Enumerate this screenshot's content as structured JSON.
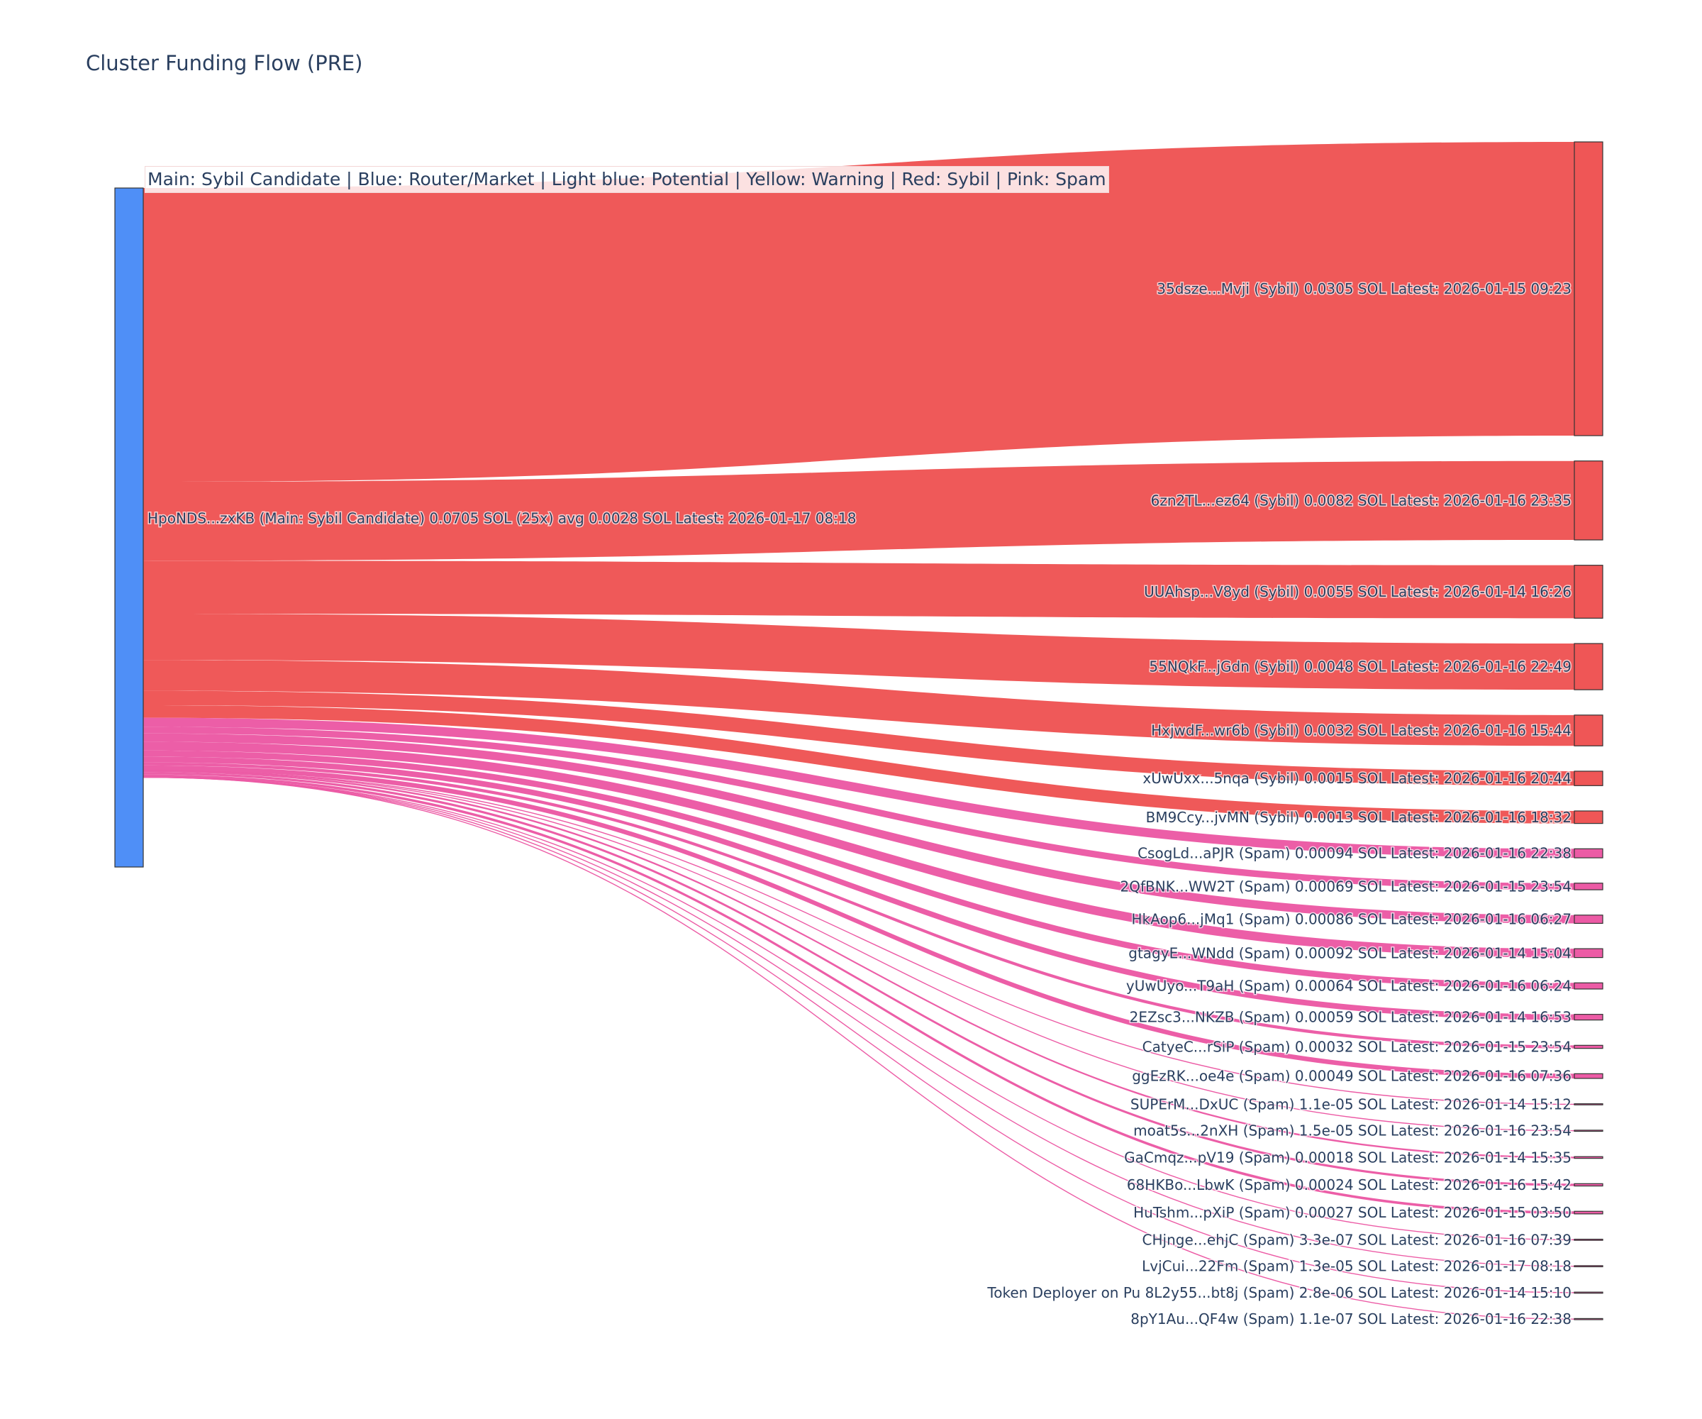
{
  "chart_data": {
    "type": "sankey",
    "title": "Cluster Funding Flow (PRE)",
    "legend_note": "Main: Sybil Candidate  |  Blue: Router/Market | Light blue: Potential | Yellow: Warning | Red: Sybil | Pink: Spam",
    "colors": {
      "main": "#4f8ff7",
      "sybil": "#ef5656",
      "spam": "#ec5ba5",
      "node_border": "#333333",
      "label": "#2a3f5f"
    },
    "source": {
      "label": "HpoNDS...zxKB (Main: Sybil Candidate) 0.0705 SOL (25x) avg 0.0028 SOL Latest: 2026-01-17 08:18",
      "total_sol": 0.0705,
      "category": "main"
    },
    "targets": [
      {
        "label": "35dsze...Mvji (Sybil) 0.0305 SOL Latest: 2026-01-15 09:23",
        "value": 0.0305,
        "category": "sybil"
      },
      {
        "label": "6zn2TL...ez64 (Sybil) 0.0082 SOL Latest: 2026-01-16 23:35",
        "value": 0.0082,
        "category": "sybil"
      },
      {
        "label": "UUAhsp...V8yd (Sybil) 0.0055 SOL Latest: 2026-01-14 16:26",
        "value": 0.0055,
        "category": "sybil"
      },
      {
        "label": "55NQkF...jGdn (Sybil) 0.0048 SOL Latest: 2026-01-16 22:49",
        "value": 0.0048,
        "category": "sybil"
      },
      {
        "label": "HxjwdF...wr6b (Sybil) 0.0032 SOL Latest: 2026-01-16 15:44",
        "value": 0.0032,
        "category": "sybil"
      },
      {
        "label": "xUwUxx...5nqa (Sybil) 0.0015 SOL Latest: 2026-01-16 20:44",
        "value": 0.0015,
        "category": "sybil"
      },
      {
        "label": "BM9Ccy...jvMN (Sybil) 0.0013 SOL Latest: 2026-01-16 18:32",
        "value": 0.0013,
        "category": "sybil"
      },
      {
        "label": "CsogLd...aPJR (Spam) 0.00094 SOL Latest: 2026-01-16 22:38",
        "value": 0.00094,
        "category": "spam"
      },
      {
        "label": "2QfBNK...WW2T (Spam) 0.00069 SOL Latest: 2026-01-15 23:54",
        "value": 0.00069,
        "category": "spam"
      },
      {
        "label": "HkAop6...jMq1 (Spam) 0.00086 SOL Latest: 2026-01-16 06:27",
        "value": 0.00086,
        "category": "spam"
      },
      {
        "label": "gtagyE...WNdd (Spam) 0.00092 SOL Latest: 2026-01-14 15:04",
        "value": 0.00092,
        "category": "spam"
      },
      {
        "label": "yUwUyo...T9aH (Spam) 0.00064 SOL Latest: 2026-01-16 06:24",
        "value": 0.00064,
        "category": "spam"
      },
      {
        "label": "2EZsc3...NKZB (Spam) 0.00059 SOL Latest: 2026-01-14 16:53",
        "value": 0.00059,
        "category": "spam"
      },
      {
        "label": "CatyeC...rSiP (Spam) 0.00032 SOL Latest: 2026-01-15 23:54",
        "value": 0.00032,
        "category": "spam"
      },
      {
        "label": "ggEzRK...oe4e (Spam) 0.00049 SOL Latest: 2026-01-16 07:36",
        "value": 0.00049,
        "category": "spam"
      },
      {
        "label": "SUPErM...DxUC (Spam) 1.1e-05 SOL Latest: 2026-01-14 15:12",
        "value": 1.1e-05,
        "category": "spam"
      },
      {
        "label": "moat5s...2nXH (Spam) 1.5e-05 SOL Latest: 2026-01-16 23:54",
        "value": 1.5e-05,
        "category": "spam"
      },
      {
        "label": "GaCmqz...pV19 (Spam) 0.00018 SOL Latest: 2026-01-14 15:35",
        "value": 0.00018,
        "category": "spam"
      },
      {
        "label": "68HKBo...LbwK (Spam) 0.00024 SOL Latest: 2026-01-16 15:42",
        "value": 0.00024,
        "category": "spam"
      },
      {
        "label": "HuTshm...pXiP (Spam) 0.00027 SOL Latest: 2026-01-15 03:50",
        "value": 0.00027,
        "category": "spam"
      },
      {
        "label": "CHjnge...ehjC (Spam) 3.3e-07 SOL Latest: 2026-01-16 07:39",
        "value": 3.3e-07,
        "category": "spam"
      },
      {
        "label": "LvjCui...22Fm (Spam) 1.3e-05 SOL Latest: 2026-01-17 08:18",
        "value": 1.3e-05,
        "category": "spam"
      },
      {
        "label": "Token Deployer on Pu 8L2y55...bt8j (Spam) 2.8e-06 SOL Latest: 2026-01-14 15:10",
        "value": 2.8e-06,
        "category": "spam"
      },
      {
        "label": "8pY1Au...QF4w (Spam) 1.1e-07 SOL Latest: 2026-01-16 22:38",
        "value": 1.1e-07,
        "category": "spam"
      }
    ]
  }
}
